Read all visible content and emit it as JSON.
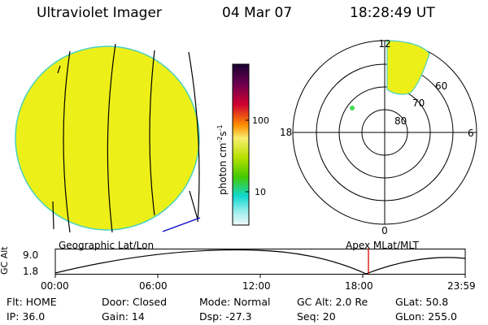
{
  "header": {
    "title": "Ultraviolet Imager",
    "date": "04 Mar 07",
    "time": "18:28:49 UT"
  },
  "colorbar": {
    "label": "photon cm",
    "label_exp1": "-2",
    "label_s": "s",
    "label_exp2": "-1",
    "ticks": [
      "100",
      "10"
    ],
    "scale": "log"
  },
  "polar": {
    "mlt_labels": [
      "12",
      "18",
      "6",
      "0"
    ],
    "lat_labels": [
      "60",
      "70",
      "80"
    ]
  },
  "image_labels": {
    "left": "Geographic Lat/Lon",
    "right": "Apex MLat/MLT"
  },
  "timeline": {
    "ylabel": "GC Alt",
    "y_ticks": [
      "9.0",
      "1.8"
    ],
    "x_ticks": [
      "00:00",
      "06:00",
      "12:00",
      "18:00",
      "23:59"
    ],
    "current_time_marker": "18:28"
  },
  "info": {
    "row1": {
      "flt": "Flt: HOME",
      "door": "Door: Closed",
      "mode": "Mode: Normal",
      "gcalt": "GC Alt: 2.0 Re",
      "glat": "GLat:  50.8"
    },
    "row2": {
      "ip": "IP: 36.0",
      "gain": "Gain: 14",
      "dsp": "Dsp:  -27.3",
      "seq": "Seq: 20",
      "glon": "GLon: 255.0"
    }
  },
  "colors": {
    "disk_fill": "#ecf018",
    "disk_edge": "#4ad0c0",
    "marker": "#dd0000",
    "horizon": "#0000cc"
  }
}
